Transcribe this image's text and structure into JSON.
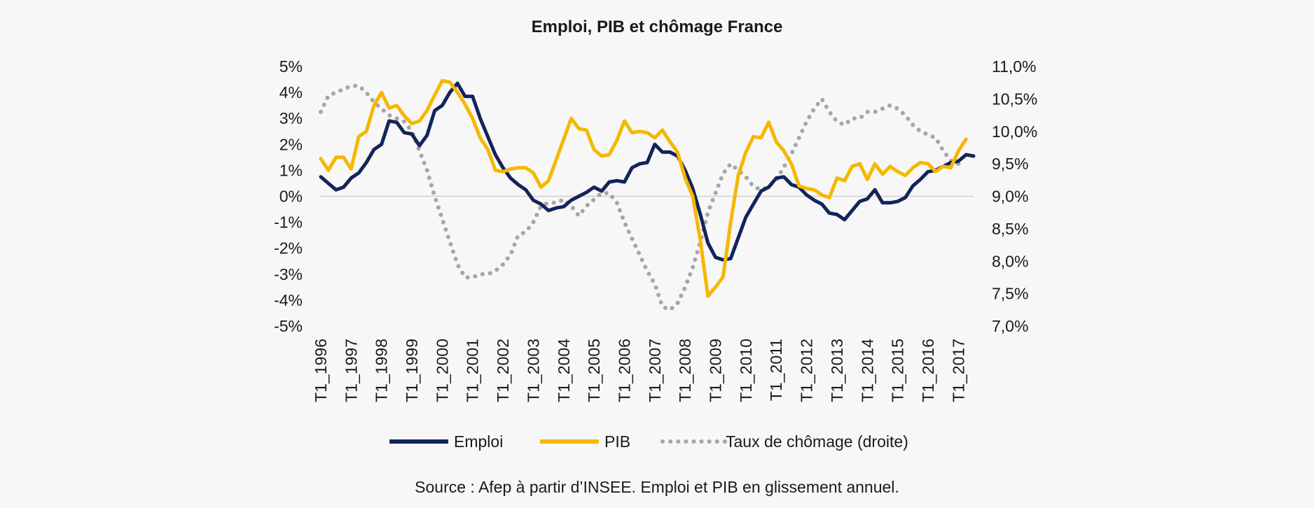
{
  "chart_data": {
    "type": "line",
    "title": "Emploi, PIB et chômage France",
    "source": "Source : Afep à partir d’INSEE. Emploi et PIB en glissement annuel.",
    "x_start": "T1_1996",
    "x_tick_labels": [
      "T1_1996",
      "T1_1997",
      "T1_1998",
      "T1_1999",
      "T1_2000",
      "T1_2001",
      "T1_2002",
      "T1_2003",
      "T1_2004",
      "T1_2005",
      "T1_2006",
      "T1_2007",
      "T1_2008",
      "T1_2009",
      "T1_2010",
      "T1_2011",
      "T1_2012",
      "T1_2013",
      "T1_2014",
      "T1_2015",
      "T1_2016",
      "T1_2017"
    ],
    "y_left": {
      "min": -5,
      "max": 5,
      "step": 1,
      "tick_labels": [
        "5%",
        "4%",
        "3%",
        "2%",
        "1%",
        "0%",
        "-1%",
        "-2%",
        "-3%",
        "-4%",
        "-5%"
      ]
    },
    "y_right": {
      "min": 7.0,
      "max": 11.0,
      "step": 0.5,
      "axis": "droite",
      "tick_labels": [
        "11,0%",
        "10,5%",
        "10,0%",
        "9,5%",
        "9,0%",
        "8,5%",
        "8,0%",
        "7,5%",
        "7,0%"
      ]
    },
    "zero_line": true,
    "legend_position": "bottom",
    "series": [
      {
        "name": "Emploi",
        "axis": "left",
        "color": "#13245b",
        "style": "solid",
        "values": [
          0.75,
          0.5,
          0.25,
          0.35,
          0.7,
          0.9,
          1.3,
          1.8,
          2.0,
          2.9,
          2.85,
          2.45,
          2.4,
          1.95,
          2.35,
          3.3,
          3.5,
          4.0,
          4.35,
          3.85,
          3.85,
          3.0,
          2.3,
          1.6,
          1.1,
          0.7,
          0.45,
          0.25,
          -0.15,
          -0.3,
          -0.55,
          -0.45,
          -0.4,
          -0.15,
          0.0,
          0.15,
          0.35,
          0.2,
          0.55,
          0.6,
          0.55,
          1.1,
          1.25,
          1.3,
          2.0,
          1.7,
          1.7,
          1.55,
          1.0,
          0.3,
          -0.7,
          -1.8,
          -2.35,
          -2.45,
          -2.4,
          -1.6,
          -0.8,
          -0.3,
          0.2,
          0.35,
          0.7,
          0.75,
          0.45,
          0.35,
          0.05,
          -0.15,
          -0.3,
          -0.65,
          -0.7,
          -0.9,
          -0.55,
          -0.2,
          -0.1,
          0.25,
          -0.25,
          -0.25,
          -0.2,
          -0.05,
          0.4,
          0.65,
          0.95,
          1.0,
          1.15,
          1.3,
          1.35,
          1.6,
          1.55
        ]
      },
      {
        "name": "PIB",
        "axis": "left",
        "color": "#f5b800",
        "style": "solid",
        "values": [
          1.45,
          1.0,
          1.5,
          1.5,
          1.05,
          2.3,
          2.5,
          3.5,
          4.0,
          3.4,
          3.5,
          3.1,
          2.8,
          2.9,
          3.3,
          3.9,
          4.45,
          4.4,
          4.0,
          3.55,
          3.0,
          2.25,
          1.8,
          1.0,
          0.95,
          1.05,
          1.1,
          1.1,
          0.9,
          0.35,
          0.6,
          1.4,
          2.2,
          3.0,
          2.6,
          2.55,
          1.8,
          1.55,
          1.6,
          2.15,
          2.9,
          2.45,
          2.5,
          2.45,
          2.25,
          2.55,
          2.1,
          1.7,
          0.7,
          0.0,
          -1.7,
          -3.85,
          -3.5,
          -3.1,
          -1.0,
          0.8,
          1.7,
          2.3,
          2.25,
          2.85,
          2.1,
          1.75,
          1.25,
          0.4,
          0.3,
          0.25,
          0.05,
          -0.05,
          0.7,
          0.6,
          1.15,
          1.25,
          0.65,
          1.25,
          0.85,
          1.15,
          0.95,
          0.8,
          1.1,
          1.3,
          1.25,
          0.95,
          1.15,
          1.1,
          1.75,
          2.2
        ]
      },
      {
        "name": "Taux de chômage (droite)",
        "axis": "right",
        "color": "#a6a6a6",
        "style": "dotted",
        "values": [
          10.3,
          10.55,
          10.6,
          10.65,
          10.7,
          10.7,
          10.6,
          10.45,
          10.35,
          10.25,
          10.2,
          10.15,
          10.0,
          9.7,
          9.4,
          9.0,
          8.65,
          8.3,
          7.95,
          7.75,
          7.75,
          7.8,
          7.8,
          7.85,
          7.95,
          8.1,
          8.4,
          8.45,
          8.6,
          8.85,
          8.9,
          8.9,
          8.95,
          8.85,
          8.7,
          8.85,
          8.95,
          9.05,
          9.05,
          8.9,
          8.6,
          8.35,
          8.1,
          7.85,
          7.65,
          7.3,
          7.25,
          7.35,
          7.6,
          7.9,
          8.3,
          8.75,
          9.05,
          9.35,
          9.5,
          9.4,
          9.3,
          9.15,
          9.1,
          9.15,
          9.25,
          9.45,
          9.65,
          9.9,
          10.15,
          10.35,
          10.5,
          10.3,
          10.15,
          10.1,
          10.2,
          10.2,
          10.3,
          10.3,
          10.35,
          10.4,
          10.35,
          10.25,
          10.1,
          10.0,
          9.95,
          9.9,
          9.7,
          9.55,
          9.5
        ]
      }
    ]
  }
}
